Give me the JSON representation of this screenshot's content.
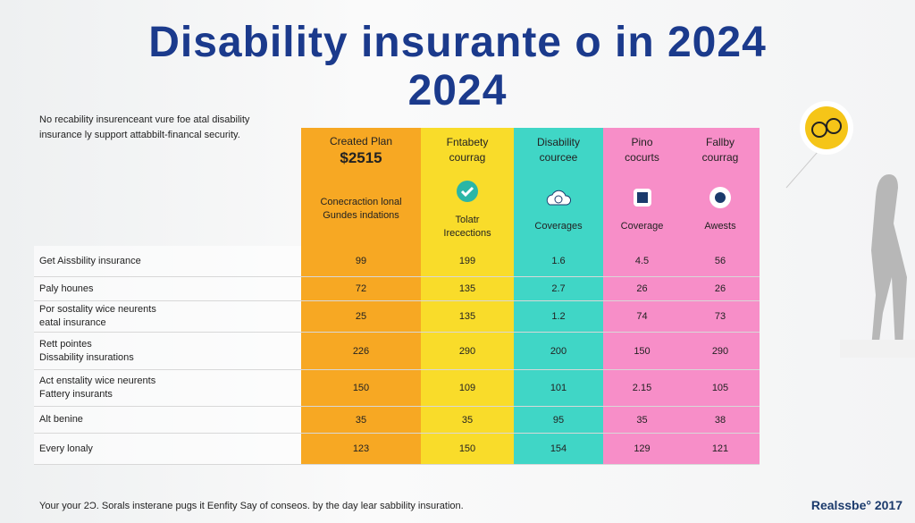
{
  "title": {
    "line1": "Disability insurante o in 2024",
    "line2": "2024"
  },
  "intro": [
    "No recability insurenceant vure foe atal disability",
    "insurance ly support attabbilt-financal security."
  ],
  "table": {
    "columns": [
      {
        "head": [
          "Created Plan",
          "$2515"
        ],
        "sub": [
          "Conecraction lonal",
          "Gundes indations"
        ]
      },
      {
        "head": [
          "Fntabety",
          "courrag"
        ],
        "sub": [
          "Tolatr",
          "Irecections"
        ]
      },
      {
        "head": [
          "Disability",
          "courcee"
        ],
        "sub": [
          "Coverages"
        ]
      },
      {
        "head": [
          "Pino",
          "cocurts"
        ],
        "sub": [
          "Coverage"
        ]
      },
      {
        "head": [
          "Fallby",
          "courrag"
        ],
        "sub": [
          "Awests"
        ]
      }
    ],
    "rows": [
      {
        "label": [
          "Get Aissbility insurance"
        ],
        "values": [
          "99",
          "199",
          "1.6",
          "4.5",
          "56"
        ]
      },
      {
        "label": [
          "Paly hounes"
        ],
        "values": [
          "72",
          "135",
          "2.7",
          "26",
          "26"
        ]
      },
      {
        "label": [
          "Por sostality wice neurents",
          "eatal insurance"
        ],
        "values": [
          "25",
          "135",
          "1.2",
          "74",
          "73"
        ]
      },
      {
        "label": [
          "Rett pointes",
          "Dissability insurations"
        ],
        "values": [
          "226",
          "290",
          "200",
          "150",
          "290"
        ]
      },
      {
        "label": [
          "Act enstality wice neurents",
          "Fattery insurants"
        ],
        "values": [
          "150",
          "109",
          "101",
          "2.15",
          "105"
        ]
      },
      {
        "label": [
          "Alt benine"
        ],
        "values": [
          "35",
          "35",
          "95",
          "35",
          "38"
        ]
      },
      {
        "label": [
          "Every lonaly"
        ],
        "values": [
          "123",
          "150",
          "154",
          "129",
          "121"
        ]
      }
    ]
  },
  "footer": {
    "note": "Your your 2Ɔ. Sorals insterane pugs it Eenfity Say of conseos. by the day lear sabbility insuration.",
    "brand": "Realssbe° 2017"
  }
}
